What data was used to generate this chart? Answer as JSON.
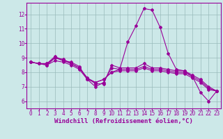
{
  "xlabel": "Windchill (Refroidissement éolien,°C)",
  "bg_color": "#cce8e8",
  "line_color": "#990099",
  "grid_color": "#99bbbb",
  "xlim": [
    -0.5,
    23.5
  ],
  "ylim": [
    5.5,
    12.8
  ],
  "xticks": [
    0,
    1,
    2,
    3,
    4,
    5,
    6,
    7,
    8,
    9,
    10,
    11,
    12,
    13,
    14,
    15,
    16,
    17,
    18,
    19,
    20,
    21,
    22,
    23
  ],
  "yticks": [
    6,
    7,
    8,
    9,
    10,
    11,
    12
  ],
  "series": [
    [
      8.7,
      8.6,
      8.6,
      9.1,
      8.8,
      8.7,
      8.4,
      7.5,
      7.0,
      7.3,
      8.3,
      8.2,
      10.1,
      11.2,
      12.4,
      12.3,
      11.1,
      9.3,
      8.2,
      8.1,
      7.7,
      6.6,
      6.0,
      6.7
    ],
    [
      8.7,
      8.6,
      8.6,
      9.0,
      8.9,
      8.6,
      8.3,
      7.6,
      7.2,
      7.2,
      8.5,
      8.3,
      8.3,
      8.3,
      8.6,
      8.3,
      8.3,
      8.2,
      8.1,
      8.1,
      7.8,
      7.5,
      7.0,
      6.7
    ],
    [
      8.7,
      8.6,
      8.5,
      9.0,
      8.8,
      8.6,
      8.3,
      7.6,
      7.3,
      7.5,
      8.0,
      8.2,
      8.2,
      8.2,
      8.4,
      8.2,
      8.2,
      8.1,
      8.0,
      8.0,
      7.7,
      7.4,
      6.9,
      6.7
    ],
    [
      8.7,
      8.6,
      8.5,
      8.8,
      8.7,
      8.5,
      8.2,
      7.5,
      7.3,
      7.5,
      8.0,
      8.1,
      8.1,
      8.1,
      8.3,
      8.1,
      8.1,
      8.0,
      7.9,
      7.9,
      7.6,
      7.3,
      6.8,
      6.7
    ]
  ],
  "xlabel_fontsize": 6.5,
  "tick_fontsize": 5.5,
  "marker": "D",
  "markersize": 2.0,
  "linewidth": 0.8
}
